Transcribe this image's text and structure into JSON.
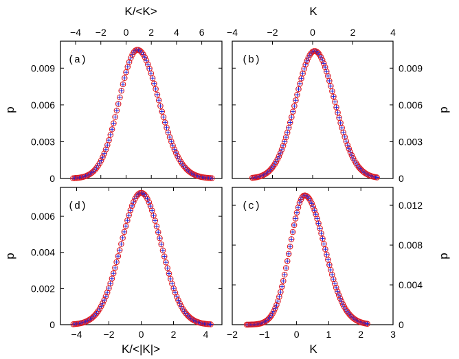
{
  "chart_data": [
    {
      "panel": "(a)",
      "type": "scatter",
      "xlabel": "K/<K>",
      "ylabel": "p",
      "xlim": [
        -5.2,
        7.6
      ],
      "ylim": [
        0,
        0.0112
      ],
      "xticks": [
        -4,
        -2,
        0,
        2,
        4,
        6
      ],
      "yticks": [
        0,
        0.003,
        0.006,
        0.009
      ],
      "ytick_labels": [
        "0",
        "0.003",
        "0.006",
        "0.009"
      ],
      "peak": 0.0105,
      "center": 0.9,
      "sigma_left": 1.45,
      "sigma_right": 1.7,
      "range": [
        -4.2,
        6.8
      ],
      "n_points": 90,
      "series": [
        {
          "marker": "circle",
          "color": "#e41a1c"
        },
        {
          "marker": "plus",
          "color": "#1f1fd6"
        }
      ]
    },
    {
      "panel": "(b)",
      "type": "scatter",
      "xlabel": "K",
      "ylabel": "p",
      "xlim": [
        -4,
        4
      ],
      "ylim": [
        0,
        0.0112
      ],
      "xticks": [
        -4,
        -2,
        0,
        2,
        4
      ],
      "yticks": [
        0,
        0.003,
        0.006,
        0.009
      ],
      "ytick_labels": [
        "0",
        "0.003",
        "0.006",
        "0.009"
      ],
      "peak": 0.0104,
      "center": 0.1,
      "sigma_left": 0.95,
      "sigma_right": 1.0,
      "range": [
        -3.0,
        3.2
      ],
      "n_points": 90,
      "series": [
        {
          "marker": "circle",
          "color": "#e41a1c"
        },
        {
          "marker": "plus",
          "color": "#1f1fd6"
        }
      ]
    },
    {
      "panel": "(d)",
      "type": "scatter",
      "xlabel": "K/<|K|>",
      "ylabel": "p",
      "xlim": [
        -5,
        5
      ],
      "ylim": [
        0,
        0.0076
      ],
      "xticks": [
        -4,
        -2,
        0,
        2,
        4
      ],
      "yticks": [
        0,
        0.002,
        0.004,
        0.006
      ],
      "ytick_labels": [
        "0",
        "0.002",
        "0.004",
        "0.006"
      ],
      "peak": 0.0073,
      "center": 0.0,
      "sigma_left": 1.25,
      "sigma_right": 1.25,
      "range": [
        -4.2,
        4.3
      ],
      "n_points": 90,
      "series": [
        {
          "marker": "circle",
          "color": "#e41a1c"
        },
        {
          "marker": "plus",
          "color": "#1f1fd6"
        }
      ]
    },
    {
      "panel": "(c)",
      "type": "scatter",
      "xlabel": "K",
      "ylabel": "p",
      "xlim": [
        -2,
        3
      ],
      "ylim": [
        0,
        0.0138
      ],
      "xticks": [
        -2,
        -1,
        0,
        1,
        2,
        3
      ],
      "yticks": [
        0,
        0.004,
        0.008,
        0.012
      ],
      "ytick_labels": [
        "0",
        "0.004",
        "0.008",
        "0.012"
      ],
      "peak": 0.013,
      "center": 0.25,
      "sigma_left": 0.45,
      "sigma_right": 0.62,
      "range": [
        -1.55,
        2.2
      ],
      "n_points": 90,
      "series": [
        {
          "marker": "circle",
          "color": "#e41a1c"
        },
        {
          "marker": "plus",
          "color": "#1f1fd6"
        }
      ]
    }
  ]
}
